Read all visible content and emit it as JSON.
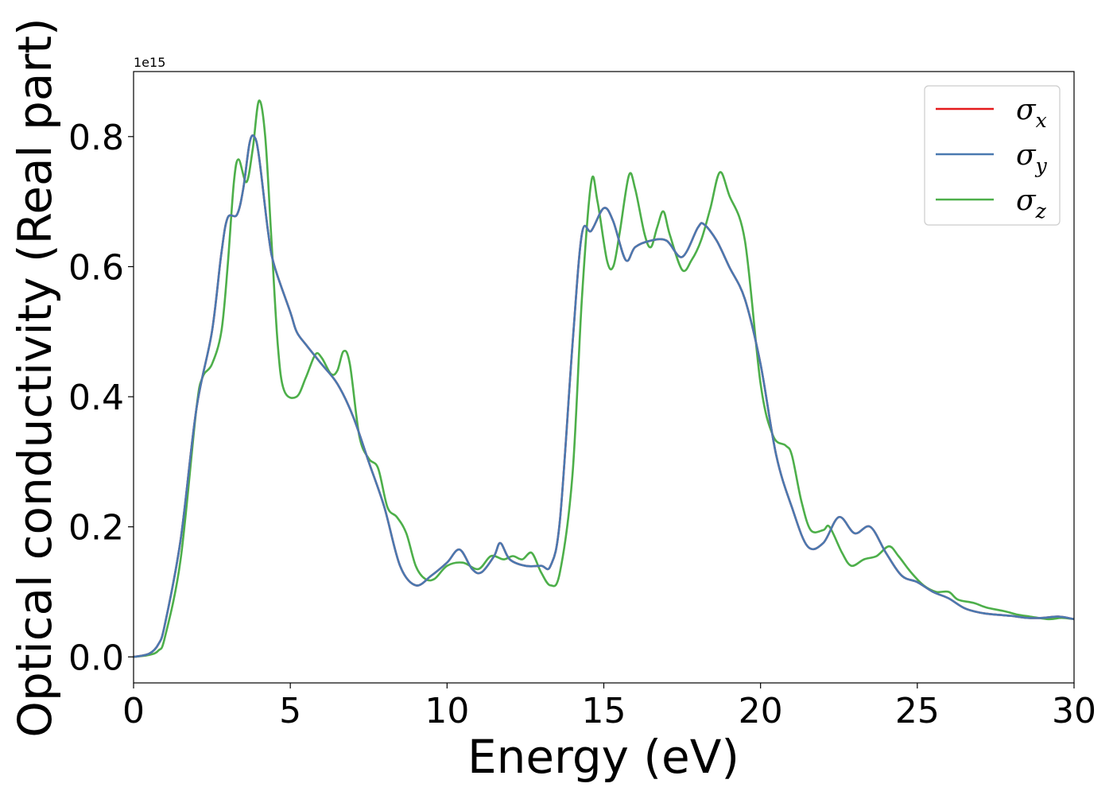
{
  "chart_data": {
    "type": "line",
    "xlabel": "Energy (eV)",
    "ylabel": "Optical conductivity (Real part)",
    "y_offset_label": "1e15",
    "xlim": [
      0,
      30
    ],
    "ylim": [
      -0.04,
      0.9
    ],
    "x_ticks": [
      0,
      5,
      10,
      15,
      20,
      25,
      30
    ],
    "x_tick_labels": [
      "0",
      "5",
      "10",
      "15",
      "20",
      "25",
      "30"
    ],
    "y_ticks": [
      0.0,
      0.2,
      0.4,
      0.6,
      0.8
    ],
    "y_tick_labels": [
      "0.0",
      "0.2",
      "0.4",
      "0.6",
      "0.8"
    ],
    "grid": false,
    "legend_position": "top-right",
    "series": [
      {
        "name": "σx",
        "base": "σ",
        "sub": "x",
        "color": "#e41a1c",
        "points": [
          [
            0,
            0
          ],
          [
            0.5,
            0.005
          ],
          [
            0.8,
            0.02
          ],
          [
            1.0,
            0.05
          ],
          [
            1.5,
            0.18
          ],
          [
            2.0,
            0.38
          ],
          [
            2.5,
            0.5
          ],
          [
            2.8,
            0.62
          ],
          [
            3.0,
            0.675
          ],
          [
            3.3,
            0.68
          ],
          [
            3.5,
            0.72
          ],
          [
            3.7,
            0.79
          ],
          [
            3.85,
            0.8
          ],
          [
            4.0,
            0.77
          ],
          [
            4.3,
            0.65
          ],
          [
            4.5,
            0.6
          ],
          [
            5.0,
            0.53
          ],
          [
            5.2,
            0.5
          ],
          [
            5.5,
            0.48
          ],
          [
            6.0,
            0.45
          ],
          [
            6.5,
            0.42
          ],
          [
            7.0,
            0.37
          ],
          [
            7.5,
            0.3
          ],
          [
            8.0,
            0.23
          ],
          [
            8.5,
            0.14
          ],
          [
            9.0,
            0.11
          ],
          [
            9.5,
            0.125
          ],
          [
            10.0,
            0.145
          ],
          [
            10.4,
            0.165
          ],
          [
            10.8,
            0.135
          ],
          [
            11.1,
            0.13
          ],
          [
            11.5,
            0.155
          ],
          [
            11.7,
            0.175
          ],
          [
            12.0,
            0.15
          ],
          [
            12.5,
            0.14
          ],
          [
            13.0,
            0.14
          ],
          [
            13.3,
            0.14
          ],
          [
            13.6,
            0.21
          ],
          [
            14.0,
            0.48
          ],
          [
            14.3,
            0.65
          ],
          [
            14.6,
            0.655
          ],
          [
            15.0,
            0.69
          ],
          [
            15.3,
            0.67
          ],
          [
            15.7,
            0.61
          ],
          [
            16.0,
            0.63
          ],
          [
            16.5,
            0.64
          ],
          [
            17.0,
            0.64
          ],
          [
            17.5,
            0.615
          ],
          [
            18.0,
            0.66
          ],
          [
            18.2,
            0.665
          ],
          [
            18.6,
            0.64
          ],
          [
            19.0,
            0.6
          ],
          [
            19.5,
            0.55
          ],
          [
            20.0,
            0.45
          ],
          [
            20.5,
            0.31
          ],
          [
            21.0,
            0.23
          ],
          [
            21.5,
            0.17
          ],
          [
            22.0,
            0.175
          ],
          [
            22.5,
            0.215
          ],
          [
            23.0,
            0.19
          ],
          [
            23.5,
            0.2
          ],
          [
            24.0,
            0.16
          ],
          [
            24.5,
            0.125
          ],
          [
            25.0,
            0.115
          ],
          [
            25.5,
            0.1
          ],
          [
            26.0,
            0.09
          ],
          [
            26.5,
            0.075
          ],
          [
            27.0,
            0.068
          ],
          [
            27.5,
            0.065
          ],
          [
            28.0,
            0.063
          ],
          [
            28.5,
            0.06
          ],
          [
            29.0,
            0.06
          ],
          [
            29.5,
            0.062
          ],
          [
            30.0,
            0.058
          ]
        ]
      },
      {
        "name": "σy",
        "base": "σ",
        "sub": "y",
        "color": "#4a79b0",
        "points": [
          [
            0,
            0
          ],
          [
            0.5,
            0.005
          ],
          [
            0.8,
            0.02
          ],
          [
            1.0,
            0.05
          ],
          [
            1.5,
            0.18
          ],
          [
            2.0,
            0.38
          ],
          [
            2.5,
            0.5
          ],
          [
            2.8,
            0.62
          ],
          [
            3.0,
            0.675
          ],
          [
            3.3,
            0.68
          ],
          [
            3.5,
            0.72
          ],
          [
            3.7,
            0.79
          ],
          [
            3.85,
            0.8
          ],
          [
            4.0,
            0.77
          ],
          [
            4.3,
            0.65
          ],
          [
            4.5,
            0.6
          ],
          [
            5.0,
            0.53
          ],
          [
            5.2,
            0.5
          ],
          [
            5.5,
            0.48
          ],
          [
            6.0,
            0.45
          ],
          [
            6.5,
            0.42
          ],
          [
            7.0,
            0.37
          ],
          [
            7.5,
            0.3
          ],
          [
            8.0,
            0.23
          ],
          [
            8.5,
            0.14
          ],
          [
            9.0,
            0.11
          ],
          [
            9.5,
            0.125
          ],
          [
            10.0,
            0.145
          ],
          [
            10.4,
            0.165
          ],
          [
            10.8,
            0.135
          ],
          [
            11.1,
            0.13
          ],
          [
            11.5,
            0.155
          ],
          [
            11.7,
            0.175
          ],
          [
            12.0,
            0.15
          ],
          [
            12.5,
            0.14
          ],
          [
            13.0,
            0.14
          ],
          [
            13.3,
            0.14
          ],
          [
            13.6,
            0.21
          ],
          [
            14.0,
            0.48
          ],
          [
            14.3,
            0.65
          ],
          [
            14.6,
            0.655
          ],
          [
            15.0,
            0.69
          ],
          [
            15.3,
            0.67
          ],
          [
            15.7,
            0.61
          ],
          [
            16.0,
            0.63
          ],
          [
            16.5,
            0.64
          ],
          [
            17.0,
            0.64
          ],
          [
            17.5,
            0.615
          ],
          [
            18.0,
            0.66
          ],
          [
            18.2,
            0.665
          ],
          [
            18.6,
            0.64
          ],
          [
            19.0,
            0.6
          ],
          [
            19.5,
            0.55
          ],
          [
            20.0,
            0.45
          ],
          [
            20.5,
            0.31
          ],
          [
            21.0,
            0.23
          ],
          [
            21.5,
            0.17
          ],
          [
            22.0,
            0.175
          ],
          [
            22.5,
            0.215
          ],
          [
            23.0,
            0.19
          ],
          [
            23.5,
            0.2
          ],
          [
            24.0,
            0.16
          ],
          [
            24.5,
            0.125
          ],
          [
            25.0,
            0.115
          ],
          [
            25.5,
            0.1
          ],
          [
            26.0,
            0.09
          ],
          [
            26.5,
            0.075
          ],
          [
            27.0,
            0.068
          ],
          [
            27.5,
            0.065
          ],
          [
            28.0,
            0.063
          ],
          [
            28.5,
            0.06
          ],
          [
            29.0,
            0.06
          ],
          [
            29.5,
            0.062
          ],
          [
            30.0,
            0.058
          ]
        ]
      },
      {
        "name": "σz",
        "base": "σ",
        "sub": "z",
        "color": "#4daf4a",
        "points": [
          [
            0,
            0
          ],
          [
            0.5,
            0.003
          ],
          [
            0.8,
            0.01
          ],
          [
            1.0,
            0.03
          ],
          [
            1.5,
            0.15
          ],
          [
            2.0,
            0.38
          ],
          [
            2.2,
            0.43
          ],
          [
            2.5,
            0.45
          ],
          [
            2.8,
            0.5
          ],
          [
            3.0,
            0.6
          ],
          [
            3.2,
            0.73
          ],
          [
            3.35,
            0.765
          ],
          [
            3.6,
            0.73
          ],
          [
            3.8,
            0.78
          ],
          [
            4.0,
            0.855
          ],
          [
            4.2,
            0.8
          ],
          [
            4.4,
            0.64
          ],
          [
            4.6,
            0.48
          ],
          [
            4.8,
            0.41
          ],
          [
            5.2,
            0.4
          ],
          [
            5.5,
            0.43
          ],
          [
            5.8,
            0.465
          ],
          [
            6.0,
            0.46
          ],
          [
            6.3,
            0.435
          ],
          [
            6.5,
            0.44
          ],
          [
            6.7,
            0.47
          ],
          [
            6.9,
            0.45
          ],
          [
            7.2,
            0.34
          ],
          [
            7.5,
            0.305
          ],
          [
            7.8,
            0.29
          ],
          [
            8.1,
            0.23
          ],
          [
            8.4,
            0.215
          ],
          [
            8.7,
            0.19
          ],
          [
            9.0,
            0.14
          ],
          [
            9.3,
            0.12
          ],
          [
            9.6,
            0.12
          ],
          [
            10.0,
            0.14
          ],
          [
            10.5,
            0.145
          ],
          [
            11.0,
            0.135
          ],
          [
            11.4,
            0.155
          ],
          [
            11.8,
            0.15
          ],
          [
            12.1,
            0.155
          ],
          [
            12.4,
            0.15
          ],
          [
            12.7,
            0.16
          ],
          [
            13.0,
            0.13
          ],
          [
            13.3,
            0.11
          ],
          [
            13.6,
            0.13
          ],
          [
            14.0,
            0.28
          ],
          [
            14.3,
            0.55
          ],
          [
            14.6,
            0.73
          ],
          [
            14.8,
            0.7
          ],
          [
            15.1,
            0.61
          ],
          [
            15.3,
            0.6
          ],
          [
            15.5,
            0.65
          ],
          [
            15.8,
            0.74
          ],
          [
            16.0,
            0.72
          ],
          [
            16.3,
            0.65
          ],
          [
            16.5,
            0.63
          ],
          [
            16.7,
            0.66
          ],
          [
            16.9,
            0.685
          ],
          [
            17.1,
            0.65
          ],
          [
            17.5,
            0.595
          ],
          [
            17.8,
            0.61
          ],
          [
            18.1,
            0.64
          ],
          [
            18.4,
            0.69
          ],
          [
            18.7,
            0.745
          ],
          [
            19.0,
            0.71
          ],
          [
            19.5,
            0.64
          ],
          [
            20.0,
            0.42
          ],
          [
            20.4,
            0.34
          ],
          [
            20.8,
            0.325
          ],
          [
            21.0,
            0.31
          ],
          [
            21.3,
            0.24
          ],
          [
            21.6,
            0.195
          ],
          [
            22.0,
            0.195
          ],
          [
            22.2,
            0.2
          ],
          [
            22.6,
            0.16
          ],
          [
            22.9,
            0.14
          ],
          [
            23.3,
            0.15
          ],
          [
            23.7,
            0.155
          ],
          [
            24.1,
            0.17
          ],
          [
            24.4,
            0.155
          ],
          [
            24.8,
            0.13
          ],
          [
            25.2,
            0.11
          ],
          [
            25.6,
            0.1
          ],
          [
            26.0,
            0.1
          ],
          [
            26.3,
            0.088
          ],
          [
            26.8,
            0.083
          ],
          [
            27.2,
            0.076
          ],
          [
            27.8,
            0.07
          ],
          [
            28.2,
            0.065
          ],
          [
            28.6,
            0.062
          ],
          [
            29.2,
            0.058
          ],
          [
            29.6,
            0.06
          ],
          [
            30.0,
            0.058
          ]
        ]
      }
    ]
  }
}
